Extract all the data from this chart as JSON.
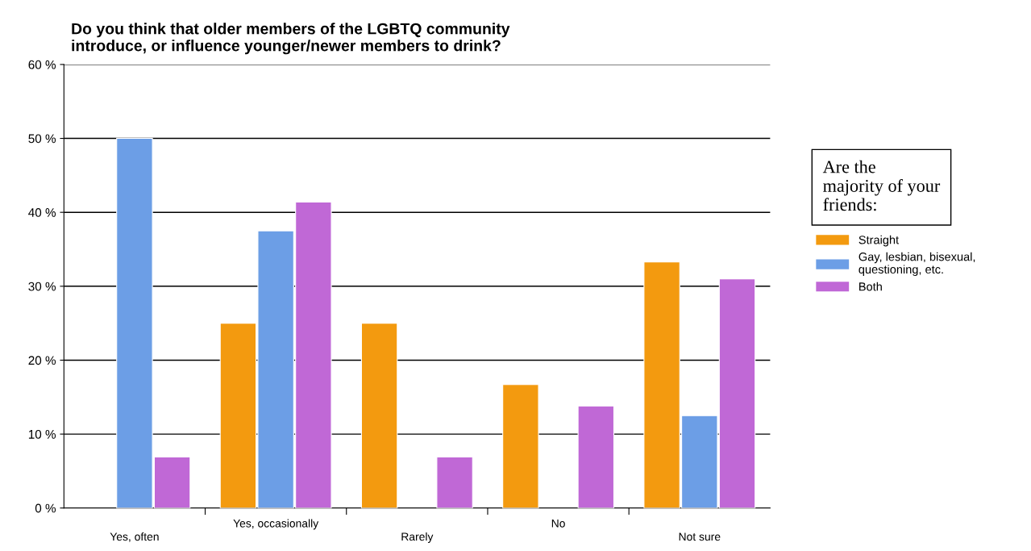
{
  "chart_data": {
    "type": "bar",
    "title": "Do you think that older members of the LGBTQ community\nintroduce, or influence younger/newer members to drink?",
    "legend_title": "Are the\nmajority of your\nfriends:",
    "categories": [
      "Yes, often",
      "Yes, occasionally",
      "Rarely",
      "No",
      "Not sure"
    ],
    "series": [
      {
        "name": "Straight",
        "color": "#f39a0f",
        "values": [
          null,
          25,
          25,
          16.7,
          33.3
        ]
      },
      {
        "name": "Gay, lesbian, bisexual,\nquestioning, etc.",
        "color": "#6c9ee6",
        "values": [
          50,
          37.5,
          null,
          null,
          12.5
        ]
      },
      {
        "name": "Both",
        "color": "#c068d6",
        "values": [
          6.9,
          41.4,
          6.9,
          13.8,
          31.0
        ]
      }
    ],
    "ylim": [
      0,
      60
    ],
    "yticks": [
      {
        "value": 0,
        "label": "0 %"
      },
      {
        "value": 10,
        "label": "10 %"
      },
      {
        "value": 20,
        "label": "20 %"
      },
      {
        "value": 30,
        "label": "30 %"
      },
      {
        "value": 40,
        "label": "40 %"
      },
      {
        "value": 50,
        "label": "50 %"
      },
      {
        "value": 60,
        "label": "60 %"
      }
    ],
    "grid": "y",
    "legend": "right"
  }
}
